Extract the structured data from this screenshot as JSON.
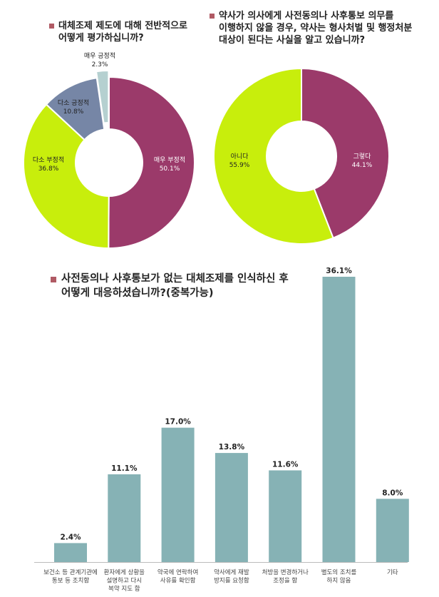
{
  "colors": {
    "bullet": "#b05a64",
    "magenta": "#9b3a6a",
    "lime": "#c8ee0c",
    "slate": "#7686a6",
    "pale": "#b5d0d0",
    "bar": "#86b2b5"
  },
  "q1": {
    "title_lines": [
      "대체조제 제도에 대해 전반적으로",
      "어떻게 평가하십니까?"
    ]
  },
  "q2": {
    "title_lines": [
      "약사가 의사에게 사전동의나 사후통보 의무를",
      "이행하지 않을 경우, 약사는 형사처벌 및 행정처분",
      "대상이 된다는 사실을 알고 있습니까?"
    ]
  },
  "q3": {
    "title_lines": [
      "사전동의나 사후통보가 없는 대체조제를 인식하신 후",
      "어떻게 대응하셨습니까?(중복가능)"
    ]
  },
  "chart_data": [
    {
      "type": "pie",
      "donut": true,
      "slices": [
        {
          "name": "매우 부정적",
          "value": 50.1,
          "label": "50.1%",
          "color": "#9b3a6a"
        },
        {
          "name": "다소 부정적",
          "value": 36.8,
          "label": "36.8%",
          "color": "#c8ee0c"
        },
        {
          "name": "다소 긍정적",
          "value": 10.8,
          "label": "10.8%",
          "color": "#7686a6"
        },
        {
          "name": "매우 긍정적",
          "value": 2.3,
          "label": "2.3%",
          "color": "#b5d0d0",
          "exploded": true
        }
      ]
    },
    {
      "type": "pie",
      "donut": true,
      "slices": [
        {
          "name": "그렇다",
          "value": 44.1,
          "label": "44.1%",
          "color": "#9b3a6a"
        },
        {
          "name": "아니다",
          "value": 55.9,
          "label": "55.9%",
          "color": "#c8ee0c"
        }
      ]
    },
    {
      "type": "bar",
      "categories": [
        [
          "보건소 등 관계기관에",
          "통보 등 조치함"
        ],
        [
          "환자에게 상황을",
          "설명하고 다시",
          "복약 지도 함"
        ],
        [
          "약국에 연락하여",
          "사유를 확인함"
        ],
        [
          "약사에게 재발",
          "방지를 요청함"
        ],
        [
          "처방을 변경하거나",
          "조정을 함"
        ],
        [
          "별도의 조치를",
          "하지 않음"
        ],
        [
          "기타"
        ]
      ],
      "values": [
        2.4,
        11.1,
        17.0,
        13.8,
        11.6,
        36.1,
        8.0
      ],
      "value_labels": [
        "2.4%",
        "11.1%",
        "17.0%",
        "13.8%",
        "11.6%",
        "36.1%",
        "8.0%"
      ],
      "color": "#86b2b5",
      "ylim": [
        0,
        36.1
      ],
      "grid": false,
      "legend": "none"
    }
  ]
}
